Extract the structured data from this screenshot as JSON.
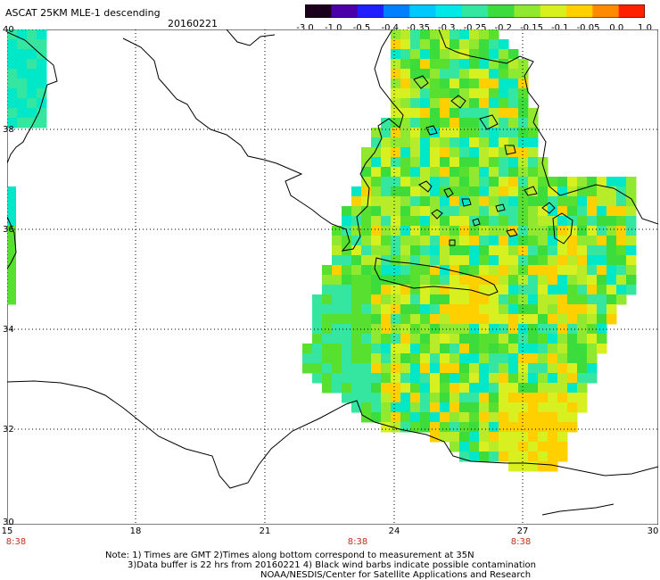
{
  "title": "ASCAT 25KM MLE-1 descending",
  "date": "20160221",
  "colorbar": {
    "labels": [
      "-3.0",
      "-1.0",
      "-0.5",
      "-0.4",
      "-0.35",
      "-0.3",
      "-0.25",
      "-0.2",
      "-0.15",
      "-0.1",
      "-0.05",
      "0.0",
      "1.0"
    ],
    "colors": [
      "#1a001a",
      "#4b00a8",
      "#1f1fff",
      "#0080ff",
      "#00c8ff",
      "#00e8e8",
      "#34e6a0",
      "#3cdc3c",
      "#90e830",
      "#d8f020",
      "#ffd000",
      "#ff8a00",
      "#ff2000"
    ]
  },
  "axes": {
    "x_ticks": [
      "15",
      "18",
      "21",
      "24",
      "27",
      "30"
    ],
    "y_ticks": [
      "40",
      "38",
      "36",
      "34",
      "32",
      "30"
    ],
    "time_labels": [
      "8:38",
      "8:38",
      "8:38"
    ]
  },
  "notes": [
    "Note: 1) Times are GMT 2)Times along bottom correspond to measurement at 35N",
    "3)Data buffer is 22 hrs from 20160221 4) Black wind barbs indicate possible contamination",
    "NOAA/NESDIS/Center for Satellite Applications and Research"
  ]
}
